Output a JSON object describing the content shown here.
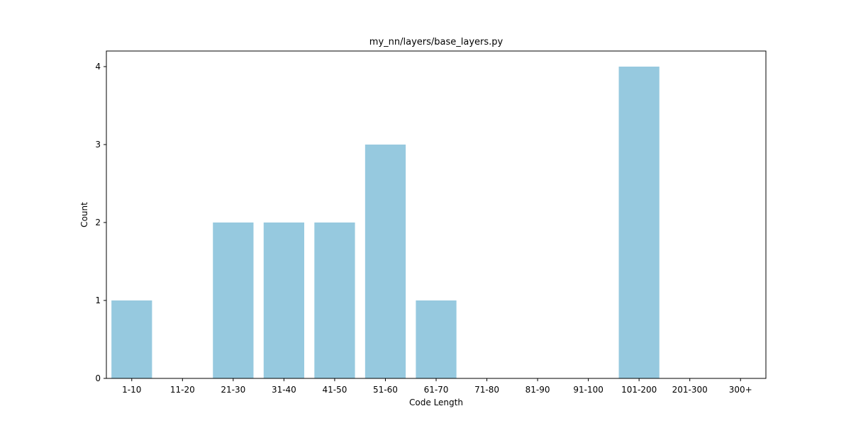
{
  "chart_data": {
    "type": "bar",
    "title": "my_nn/layers/base_layers.py",
    "xlabel": "Code Length",
    "ylabel": "Count",
    "categories": [
      "1-10",
      "11-20",
      "21-30",
      "31-40",
      "41-50",
      "51-60",
      "61-70",
      "71-80",
      "81-90",
      "91-100",
      "101-200",
      "201-300",
      "300+"
    ],
    "values": [
      1,
      0,
      2,
      2,
      2,
      3,
      1,
      0,
      0,
      0,
      4,
      0,
      0
    ],
    "ylim": [
      0,
      4.2
    ],
    "yticks": [
      0,
      1,
      2,
      3,
      4
    ],
    "bar_color": "#96c9df",
    "grid": false,
    "legend": "none"
  }
}
